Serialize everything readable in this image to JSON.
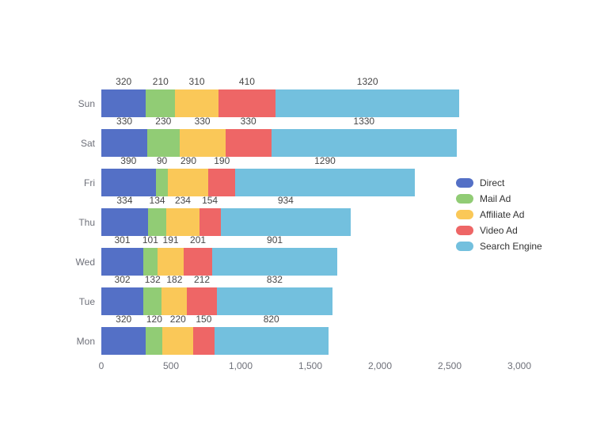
{
  "chart_data": {
    "type": "bar",
    "orientation": "horizontal",
    "stacked": true,
    "background": "#ffffff",
    "categories": [
      "Sun",
      "Sat",
      "Fri",
      "Thu",
      "Wed",
      "Tue",
      "Mon"
    ],
    "series": [
      {
        "name": "Direct",
        "color": "#5470c6",
        "values": [
          320,
          330,
          390,
          334,
          301,
          302,
          320
        ]
      },
      {
        "name": "Mail Ad",
        "color": "#91cc75",
        "values": [
          210,
          230,
          90,
          134,
          101,
          132,
          120
        ]
      },
      {
        "name": "Affiliate Ad",
        "color": "#fac858",
        "values": [
          310,
          330,
          290,
          234,
          191,
          182,
          220
        ]
      },
      {
        "name": "Video Ad",
        "color": "#ee6666",
        "values": [
          410,
          330,
          190,
          154,
          201,
          212,
          150
        ]
      },
      {
        "name": "Search Engine",
        "color": "#73c0de",
        "values": [
          1320,
          1330,
          1290,
          934,
          901,
          832,
          820
        ]
      }
    ],
    "x_ticks": [
      {
        "label": "0",
        "value": 0
      },
      {
        "label": "500",
        "value": 500
      },
      {
        "label": "1,000",
        "value": 1000
      },
      {
        "label": "1,500",
        "value": 1500
      },
      {
        "label": "2,000",
        "value": 2000
      },
      {
        "label": "2,500",
        "value": 2500
      },
      {
        "label": "3,000",
        "value": 3000
      }
    ],
    "xlim": [
      0,
      3000
    ],
    "title": "",
    "xlabel": "",
    "ylabel": "",
    "grid": false,
    "legend_position": "right",
    "value_labels": "above-segment",
    "text_colors": {
      "value_label": "#464646",
      "axis_label": "#6e7079",
      "legend_label": "#333333"
    }
  }
}
